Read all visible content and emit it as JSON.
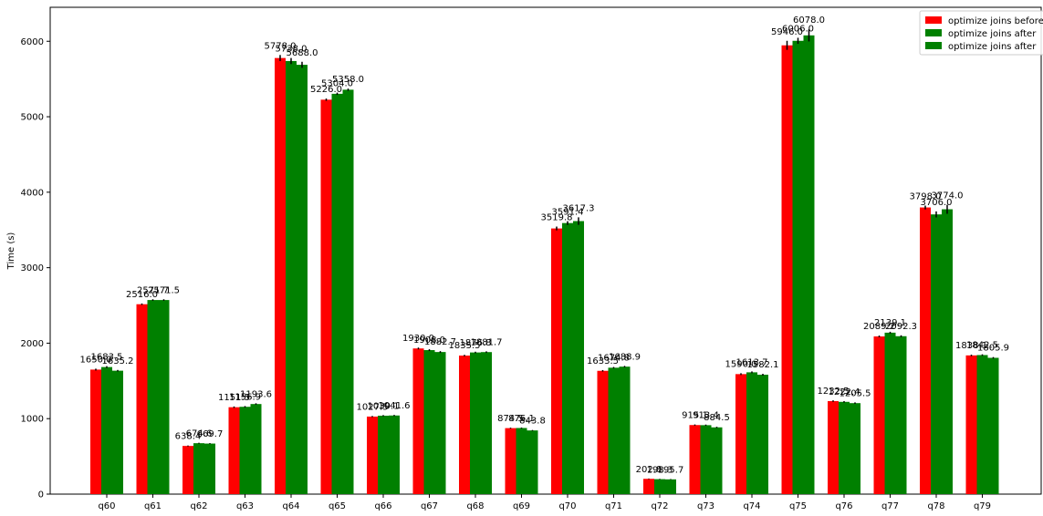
{
  "chart_data": {
    "type": "bar",
    "title": "",
    "xlabel": "",
    "ylabel": "Time (s)",
    "ylim": [
      0,
      6450
    ],
    "yticks": [
      0,
      1000,
      2000,
      3000,
      4000,
      5000,
      6000
    ],
    "grid": false,
    "legend_placement": "top-right",
    "categories": [
      "q60",
      "q61",
      "q62",
      "q63",
      "q64",
      "q65",
      "q66",
      "q67",
      "q68",
      "q69",
      "q70",
      "q71",
      "q72",
      "q73",
      "q74",
      "q75",
      "q76",
      "q77",
      "q78",
      "q79"
    ],
    "series": [
      {
        "name": "optimize joins before",
        "color": "#ff0000",
        "values": [
          1650.0,
          2516.0,
          638.4,
          1151.5,
          5778.0,
          5226.0,
          1027.5,
          1930.0,
          1835.5,
          874.5,
          3519.8,
          1633.5,
          202.8,
          915.1,
          1590.0,
          5946.0,
          1232.5,
          2089.2,
          3798.0,
          1838.1
        ],
        "labels": [
          "1650.0",
          "2516.0",
          "638.4",
          "1151.5",
          "5778.0",
          "5226.0",
          "1027.5",
          "1930.0",
          "1835.5",
          "874.5",
          "3519.8",
          "1633.5",
          "202.8",
          "915.1",
          "1590.0",
          "5946.0",
          "1232.5",
          "2089.2",
          "3798.0",
          "1838.1"
        ],
        "errors": [
          12,
          10,
          6,
          10,
          40,
          15,
          8,
          12,
          10,
          6,
          25,
          10,
          4,
          8,
          12,
          60,
          10,
          12,
          25,
          10
        ]
      },
      {
        "name": "optimize joins after",
        "color": "#008000",
        "values": [
          1683.5,
          2571.7,
          674.6,
          1156.9,
          5738.0,
          5304.0,
          1039.1,
          1908.0,
          1876.8,
          876.1,
          3591.4,
          1674.8,
          198.3,
          913.4,
          1613.7,
          6006.0,
          1222.4,
          2139.1,
          3706.0,
          1842.5
        ],
        "labels": [
          "1683.5",
          "2571.7",
          "674.6",
          "1156.9",
          "5738.0",
          "5304.0",
          "1039.1",
          "1908.0",
          "1876.8",
          "876.1",
          "3591.4",
          "1674.8",
          "198.3",
          "913.4",
          "1613.7",
          "6006.0",
          "1222.4",
          "2139.1",
          "3706.0",
          "1842.5"
        ],
        "errors": [
          12,
          10,
          6,
          10,
          40,
          15,
          8,
          12,
          10,
          6,
          25,
          10,
          4,
          8,
          12,
          40,
          10,
          12,
          40,
          10
        ]
      },
      {
        "name": "optimize joins after",
        "color": "#008000",
        "values": [
          1635.2,
          2571.5,
          669.7,
          1193.6,
          5688.0,
          5358.0,
          1041.6,
          1882.7,
          1881.7,
          843.8,
          3617.3,
          1688.9,
          195.7,
          884.5,
          1582.1,
          6078.0,
          1205.5,
          2092.3,
          3774.0,
          1805.9
        ],
        "labels": [
          "1635.2",
          "2571.5",
          "669.7",
          "1193.6",
          "5688.0",
          "5358.0",
          "1041.6",
          "1882.7",
          "1881.7",
          "843.8",
          "3617.3",
          "1688.9",
          "195.7",
          "884.5",
          "1582.1",
          "6078.0",
          "1205.5",
          "2092.3",
          "3774.0",
          "1805.9"
        ],
        "errors": [
          10,
          10,
          6,
          10,
          40,
          15,
          8,
          12,
          10,
          6,
          50,
          10,
          4,
          8,
          12,
          80,
          10,
          12,
          60,
          10
        ]
      }
    ]
  }
}
